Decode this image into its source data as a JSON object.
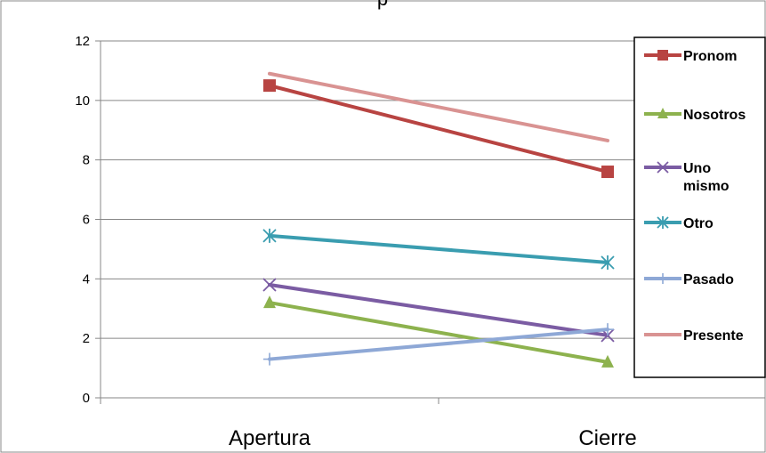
{
  "chart_data": {
    "type": "line",
    "title": "p",
    "categories": [
      "Apertura",
      "Cierre"
    ],
    "ylim": [
      0,
      12
    ],
    "yticks": [
      0,
      2,
      4,
      6,
      8,
      10,
      12
    ],
    "grid": true,
    "legend_position": "right",
    "series": [
      {
        "name": "Pronom",
        "values": [
          10.5,
          7.6
        ],
        "color": "#B84442",
        "marker": "square"
      },
      {
        "name": "Nosotros",
        "values": [
          3.2,
          1.2
        ],
        "color": "#8DB24E",
        "marker": "triangle"
      },
      {
        "name": "Uno mismo",
        "values": [
          3.8,
          2.1
        ],
        "color": "#7B5CA3",
        "marker": "x"
      },
      {
        "name": "Otro",
        "values": [
          5.45,
          4.55
        ],
        "color": "#3A9DB0",
        "marker": "star"
      },
      {
        "name": "Pasado",
        "values": [
          1.3,
          2.3
        ],
        "color": "#8EA8D6",
        "marker": "plus"
      },
      {
        "name": "Presente",
        "values": [
          10.9,
          8.65
        ],
        "color": "#D99392",
        "marker": "none"
      }
    ]
  }
}
